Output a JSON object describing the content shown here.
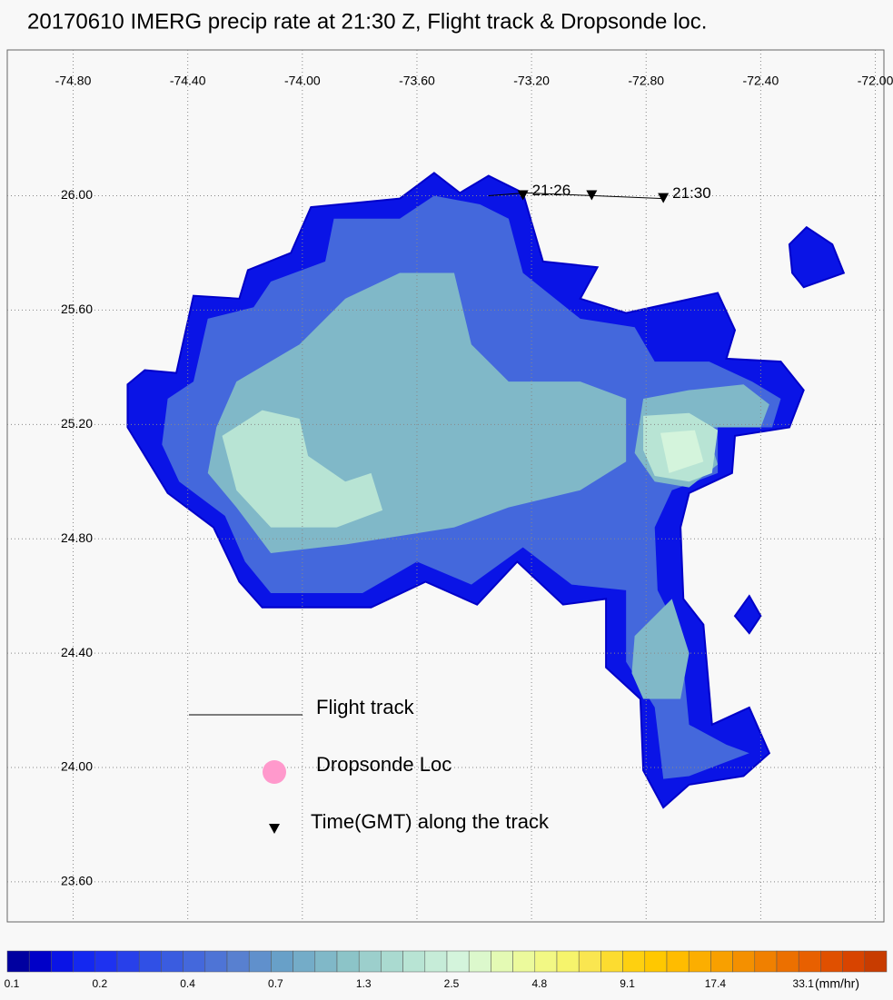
{
  "chart_data": {
    "type": "contour-map",
    "title": "20170610 IMERG precip rate at 21:30 Z, Flight track & Dropsonde loc.",
    "xlim": [
      -75.03,
      -71.97
    ],
    "ylim": [
      23.46,
      26.51
    ],
    "xticks": [
      {
        "value": -74.8,
        "label": "-74.80"
      },
      {
        "value": -74.4,
        "label": "-74.40"
      },
      {
        "value": -74.0,
        "label": "-74.00"
      },
      {
        "value": -73.6,
        "label": "-73.60"
      },
      {
        "value": -73.2,
        "label": "-73.20"
      },
      {
        "value": -72.8,
        "label": "-72.80"
      },
      {
        "value": -72.4,
        "label": "-72.40"
      },
      {
        "value": -72.0,
        "label": "-72.00"
      }
    ],
    "yticks": [
      {
        "value": 26.0,
        "label": "26.00"
      },
      {
        "value": 25.6,
        "label": "25.60"
      },
      {
        "value": 25.2,
        "label": "25.20"
      },
      {
        "value": 24.8,
        "label": "24.80"
      },
      {
        "value": 24.4,
        "label": "24.40"
      },
      {
        "value": 24.0,
        "label": "24.00"
      },
      {
        "value": 23.6,
        "label": "23.60"
      }
    ],
    "grid": true,
    "regions": [
      {
        "level": 0.1,
        "color": "#0a14e6",
        "points": [
          [
            -74.61,
            25.34
          ],
          [
            -74.55,
            25.39
          ],
          [
            -74.44,
            25.38
          ],
          [
            -74.38,
            25.65
          ],
          [
            -74.22,
            25.64
          ],
          [
            -74.19,
            25.74
          ],
          [
            -74.04,
            25.8
          ],
          [
            -73.97,
            25.96
          ],
          [
            -73.66,
            25.99
          ],
          [
            -73.54,
            26.08
          ],
          [
            -73.45,
            26.01
          ],
          [
            -73.35,
            26.07
          ],
          [
            -73.23,
            26.01
          ],
          [
            -73.16,
            25.77
          ],
          [
            -72.97,
            25.75
          ],
          [
            -73.03,
            25.64
          ],
          [
            -72.87,
            25.59
          ],
          [
            -72.55,
            25.66
          ],
          [
            -72.49,
            25.53
          ],
          [
            -72.52,
            25.43
          ],
          [
            -72.33,
            25.42
          ],
          [
            -72.25,
            25.32
          ],
          [
            -72.3,
            25.19
          ],
          [
            -72.49,
            25.16
          ],
          [
            -72.5,
            25.03
          ],
          [
            -72.65,
            24.96
          ],
          [
            -72.68,
            24.84
          ],
          [
            -72.67,
            24.59
          ],
          [
            -72.6,
            24.5
          ],
          [
            -72.57,
            24.15
          ],
          [
            -72.44,
            24.21
          ],
          [
            -72.37,
            24.05
          ],
          [
            -72.46,
            23.97
          ],
          [
            -72.65,
            23.94
          ],
          [
            -72.74,
            23.86
          ],
          [
            -72.81,
            23.99
          ],
          [
            -72.82,
            24.24
          ],
          [
            -72.94,
            24.35
          ],
          [
            -72.94,
            24.59
          ],
          [
            -73.09,
            24.57
          ],
          [
            -73.25,
            24.72
          ],
          [
            -73.39,
            24.57
          ],
          [
            -73.57,
            24.65
          ],
          [
            -73.76,
            24.56
          ],
          [
            -74.14,
            24.56
          ],
          [
            -74.22,
            24.65
          ],
          [
            -74.31,
            24.84
          ],
          [
            -74.47,
            24.96
          ],
          [
            -74.61,
            25.19
          ]
        ]
      },
      {
        "level": 0.1,
        "color": "#0a14e6",
        "points": [
          [
            -72.3,
            25.83
          ],
          [
            -72.24,
            25.89
          ],
          [
            -72.15,
            25.83
          ],
          [
            -72.11,
            25.73
          ],
          [
            -72.25,
            25.68
          ],
          [
            -72.29,
            25.73
          ]
        ]
      },
      {
        "level": 0.1,
        "color": "#0a14e6",
        "points": [
          [
            -72.44,
            24.6
          ],
          [
            -72.4,
            24.53
          ],
          [
            -72.44,
            24.47
          ],
          [
            -72.49,
            24.53
          ]
        ]
      },
      {
        "level": 0.3,
        "color": "#4468dc",
        "points": [
          [
            -74.47,
            25.29
          ],
          [
            -74.38,
            25.35
          ],
          [
            -74.33,
            25.57
          ],
          [
            -74.17,
            25.61
          ],
          [
            -74.11,
            25.7
          ],
          [
            -73.92,
            25.77
          ],
          [
            -73.89,
            25.92
          ],
          [
            -73.66,
            25.92
          ],
          [
            -73.54,
            26.0
          ],
          [
            -73.38,
            25.97
          ],
          [
            -73.28,
            25.92
          ],
          [
            -73.23,
            25.73
          ],
          [
            -73.03,
            25.57
          ],
          [
            -72.84,
            25.54
          ],
          [
            -72.77,
            25.42
          ],
          [
            -72.58,
            25.42
          ],
          [
            -72.43,
            25.35
          ],
          [
            -72.33,
            25.29
          ],
          [
            -72.36,
            25.19
          ],
          [
            -72.55,
            25.19
          ],
          [
            -72.55,
            25.03
          ],
          [
            -72.71,
            24.97
          ],
          [
            -72.77,
            24.84
          ],
          [
            -72.76,
            24.62
          ],
          [
            -72.68,
            24.46
          ],
          [
            -72.65,
            24.15
          ],
          [
            -72.52,
            24.08
          ],
          [
            -72.44,
            24.05
          ],
          [
            -72.65,
            23.97
          ],
          [
            -72.74,
            23.96
          ],
          [
            -72.77,
            24.21
          ],
          [
            -72.87,
            24.37
          ],
          [
            -72.87,
            24.62
          ],
          [
            -73.06,
            24.64
          ],
          [
            -73.23,
            24.77
          ],
          [
            -73.41,
            24.64
          ],
          [
            -73.6,
            24.72
          ],
          [
            -73.79,
            24.61
          ],
          [
            -74.11,
            24.61
          ],
          [
            -74.2,
            24.72
          ],
          [
            -74.27,
            24.88
          ],
          [
            -74.43,
            25.0
          ],
          [
            -74.49,
            25.13
          ]
        ]
      },
      {
        "level": 0.6,
        "color": "#80b8c8",
        "points": [
          [
            -74.3,
            25.19
          ],
          [
            -74.23,
            25.35
          ],
          [
            -74.01,
            25.48
          ],
          [
            -73.85,
            25.64
          ],
          [
            -73.66,
            25.73
          ],
          [
            -73.47,
            25.73
          ],
          [
            -73.41,
            25.48
          ],
          [
            -73.28,
            25.35
          ],
          [
            -73.03,
            25.35
          ],
          [
            -72.87,
            25.29
          ],
          [
            -72.87,
            25.07
          ],
          [
            -73.03,
            24.97
          ],
          [
            -73.28,
            24.91
          ],
          [
            -73.47,
            24.84
          ],
          [
            -73.66,
            24.81
          ],
          [
            -73.85,
            24.78
          ],
          [
            -74.11,
            24.75
          ],
          [
            -74.23,
            24.91
          ],
          [
            -74.33,
            25.03
          ]
        ]
      },
      {
        "level": 0.6,
        "color": "#80b8c8",
        "points": [
          [
            -72.84,
            24.46
          ],
          [
            -72.71,
            24.59
          ],
          [
            -72.65,
            24.4
          ],
          [
            -72.68,
            24.24
          ],
          [
            -72.81,
            24.24
          ],
          [
            -72.85,
            24.33
          ]
        ]
      },
      {
        "level": 0.6,
        "color": "#80b8c8",
        "points": [
          [
            -72.81,
            25.29
          ],
          [
            -72.65,
            25.32
          ],
          [
            -72.46,
            25.34
          ],
          [
            -72.37,
            25.27
          ],
          [
            -72.4,
            25.19
          ],
          [
            -72.59,
            25.19
          ],
          [
            -72.55,
            25.06
          ],
          [
            -72.65,
            24.98
          ],
          [
            -72.77,
            25.0
          ],
          [
            -72.84,
            25.1
          ]
        ]
      },
      {
        "level": 1.3,
        "color": "#b8e4d4",
        "points": [
          [
            -74.28,
            25.16
          ],
          [
            -74.14,
            25.25
          ],
          [
            -74.01,
            25.22
          ],
          [
            -73.98,
            25.09
          ],
          [
            -73.85,
            25.0
          ],
          [
            -73.76,
            25.03
          ],
          [
            -73.72,
            24.9
          ],
          [
            -73.88,
            24.84
          ],
          [
            -74.11,
            24.84
          ],
          [
            -74.23,
            24.97
          ]
        ]
      },
      {
        "level": 1.3,
        "color": "#b8e4d4",
        "points": [
          [
            -72.81,
            25.23
          ],
          [
            -72.65,
            25.24
          ],
          [
            -72.55,
            25.18
          ],
          [
            -72.57,
            25.03
          ],
          [
            -72.65,
            25.0
          ],
          [
            -72.77,
            25.02
          ],
          [
            -72.81,
            25.11
          ]
        ]
      },
      {
        "level": 2.5,
        "color": "#d4f4dc",
        "points": [
          [
            -72.75,
            25.17
          ],
          [
            -72.63,
            25.18
          ],
          [
            -72.6,
            25.07
          ],
          [
            -72.72,
            25.03
          ]
        ]
      }
    ],
    "flight_track": {
      "x": [
        -73.35,
        -73.22,
        -72.98,
        -72.74
      ],
      "y": [
        26.0,
        26.01,
        26.0,
        25.99
      ]
    },
    "time_marks": {
      "x": [
        -73.23,
        -72.99,
        -72.74
      ],
      "y": [
        26.0,
        26.0,
        25.99
      ],
      "labels": [
        "21:26",
        null,
        "21:30"
      ]
    },
    "legend": [
      "Flight track",
      "Dropsonde Loc",
      "Time(GMT) along the track"
    ],
    "dropsonde_color": "#ff99cc",
    "colorbar": {
      "colors": [
        "#0000a0",
        "#0000c8",
        "#0a14e6",
        "#1428f0",
        "#1e32f0",
        "#2840ea",
        "#3050e6",
        "#3a5ce0",
        "#4468dc",
        "#4e74d6",
        "#5880d0",
        "#6090cc",
        "#68a0c8",
        "#74acc8",
        "#80b8c8",
        "#8cc4c8",
        "#9ccfcc",
        "#aadad0",
        "#b8e4d4",
        "#c6ecd8",
        "#d4f4dc",
        "#dcf8cc",
        "#e4fab4",
        "#ecfa9c",
        "#f2f884",
        "#f6f46c",
        "#fae650",
        "#fcdc30",
        "#fed010",
        "#ffc800",
        "#ffbc00",
        "#fcae00",
        "#f8a000",
        "#f49000",
        "#f08000",
        "#ec7000",
        "#e86000",
        "#e05000",
        "#d84400",
        "#c83c00"
      ],
      "labels": [
        0.1,
        0.2,
        0.4,
        0.7,
        1.3,
        2.5,
        4.8,
        9.1,
        17.4,
        33.1
      ],
      "units": "(mm/hr)"
    }
  }
}
